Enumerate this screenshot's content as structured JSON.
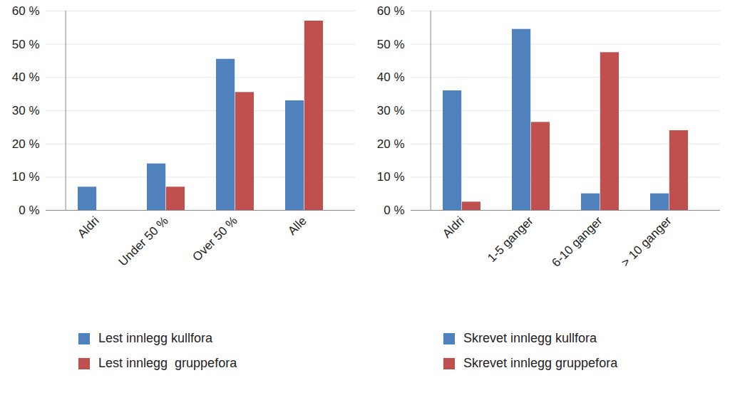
{
  "chart_data": [
    {
      "type": "bar",
      "categories": [
        "Aldri",
        "Under 50 %",
        "Over 50 %",
        "Alle"
      ],
      "series": [
        {
          "name": "Lest innlegg kullfora",
          "color": "#4f81bd",
          "values": [
            7,
            14,
            45.5,
            33
          ]
        },
        {
          "name": "Lest innlegg  gruppefora",
          "color": "#c0504d",
          "values": [
            0,
            7,
            35.5,
            57
          ]
        }
      ],
      "ylim": [
        0,
        60
      ],
      "yticks": [
        {
          "value": 0,
          "label": "0 %"
        },
        {
          "value": 10,
          "label": "10 %"
        },
        {
          "value": 20,
          "label": "20 %"
        },
        {
          "value": 30,
          "label": "30 %"
        },
        {
          "value": 40,
          "label": "40 %"
        },
        {
          "value": 50,
          "label": "50 %"
        },
        {
          "value": 60,
          "label": "60 %"
        }
      ],
      "grid": true,
      "legend": "bottom"
    },
    {
      "type": "bar",
      "categories": [
        "Aldri",
        "1-5 ganger",
        "6-10 ganger",
        "> 10 ganger"
      ],
      "series": [
        {
          "name": "Skrevet innlegg kullfora",
          "color": "#4f81bd",
          "values": [
            36,
            54.5,
            5,
            5
          ]
        },
        {
          "name": "Skrevet innlegg gruppefora",
          "color": "#c0504d",
          "values": [
            2.5,
            26.5,
            47.5,
            24
          ]
        }
      ],
      "ylim": [
        0,
        60
      ],
      "yticks": [
        {
          "value": 0,
          "label": "0 %"
        },
        {
          "value": 10,
          "label": "10 %"
        },
        {
          "value": 20,
          "label": "20 %"
        },
        {
          "value": 30,
          "label": "30 %"
        },
        {
          "value": 40,
          "label": "40 %"
        },
        {
          "value": 50,
          "label": "50 %"
        },
        {
          "value": 60,
          "label": "60 %"
        }
      ],
      "grid": true,
      "legend": "bottom"
    }
  ]
}
